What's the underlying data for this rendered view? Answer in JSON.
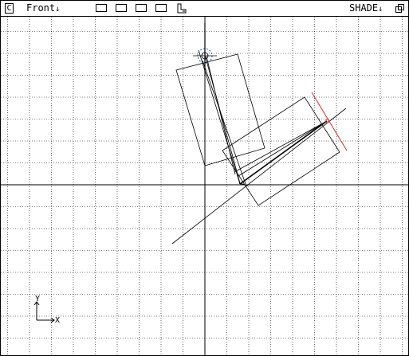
{
  "window": {
    "corner_label": "C",
    "view_menu": "Front",
    "shade_menu": "SHADE",
    "dropdown_glyph": "↓"
  },
  "toolbar": {
    "buttons": [
      "layout-single",
      "layout-two",
      "layout-three",
      "layout-four"
    ]
  },
  "axis_gizmo": {
    "y_label": "Y",
    "x_label": "X"
  },
  "colors": {
    "grid": "#000000",
    "wire": "#000000",
    "selected_wire": "#c83232",
    "empty_circle": "#1a4fd0"
  }
}
